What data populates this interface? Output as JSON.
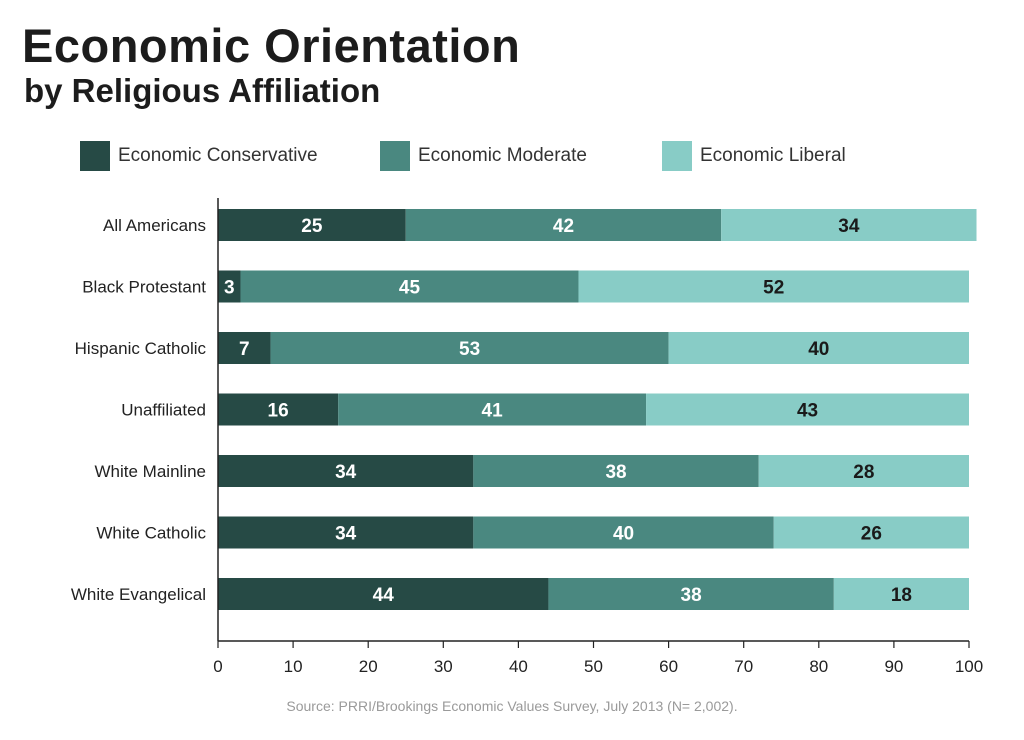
{
  "chart_data": {
    "type": "bar",
    "orientation": "horizontal",
    "stacked": true,
    "title": "Economic Orientation",
    "subtitle": "by Religious Affiliation",
    "categories": [
      "All Americans",
      "Black Protestant",
      "Hispanic Catholic",
      "Unaffiliated",
      "White Mainline",
      "White Catholic",
      "White Evangelical"
    ],
    "series": [
      {
        "name": "Economic Conservative",
        "color": "#264a45",
        "label_color": "#ffffff",
        "values": [
          25,
          3,
          7,
          16,
          34,
          34,
          44
        ]
      },
      {
        "name": "Economic Moderate",
        "color": "#4a8880",
        "label_color": "#ffffff",
        "values": [
          42,
          45,
          53,
          41,
          38,
          40,
          38
        ]
      },
      {
        "name": "Economic Liberal",
        "color": "#88ccc6",
        "label_color": "#1a1a1a",
        "values": [
          34,
          52,
          40,
          43,
          28,
          26,
          18
        ]
      }
    ],
    "xlim": [
      0,
      100
    ],
    "xticks": [
      0,
      10,
      20,
      30,
      40,
      50,
      60,
      70,
      80,
      90,
      100
    ],
    "xlabel": "",
    "ylabel": "",
    "grid": false,
    "legend": "top",
    "source": "Source: PRRI/Brookings Economic Values Survey, July 2013 (N= 2,002)."
  }
}
